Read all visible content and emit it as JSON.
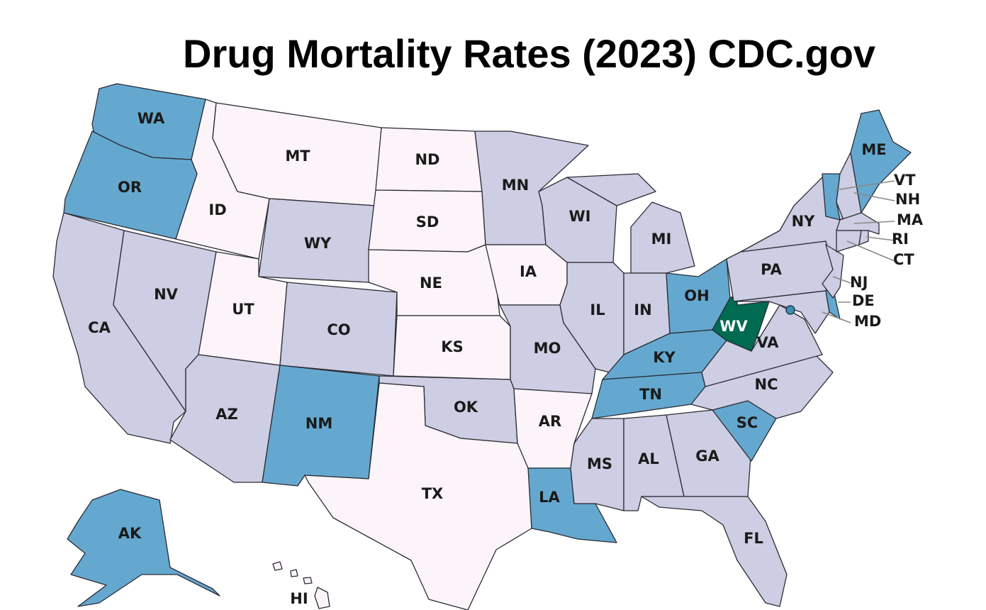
{
  "title": "Drug Mortality Rates (2023)  CDC.gov",
  "states": [
    {
      "label": "WA",
      "color": "#64a8cf"
    },
    {
      "label": "OR",
      "color": "#64a8cf"
    },
    {
      "label": "CA",
      "color": "#cdcde3"
    },
    {
      "label": "NV",
      "color": "#cdcde3"
    },
    {
      "label": "ID",
      "color": "#fcf4f9"
    },
    {
      "label": "MT",
      "color": "#fcf4f9"
    },
    {
      "label": "WY",
      "color": "#cdcde3"
    },
    {
      "label": "UT",
      "color": "#fcf4f9"
    },
    {
      "label": "CO",
      "color": "#cdcde3"
    },
    {
      "label": "AZ",
      "color": "#cdcde3"
    },
    {
      "label": "NM",
      "color": "#64a8cf"
    },
    {
      "label": "ND",
      "color": "#fcf4f9"
    },
    {
      "label": "SD",
      "color": "#fcf4f9"
    },
    {
      "label": "NE",
      "color": "#fcf4f9"
    },
    {
      "label": "KS",
      "color": "#fcf4f9"
    },
    {
      "label": "OK",
      "color": "#cdcde3"
    },
    {
      "label": "TX",
      "color": "#fcf4f9"
    },
    {
      "label": "MN",
      "color": "#cdcde3"
    },
    {
      "label": "IA",
      "color": "#fcf4f9"
    },
    {
      "label": "MO",
      "color": "#cdcde3"
    },
    {
      "label": "AR",
      "color": "#fcf4f9"
    },
    {
      "label": "LA",
      "color": "#64a8cf"
    },
    {
      "label": "WI",
      "color": "#cdcde3"
    },
    {
      "label": "IL",
      "color": "#cdcde3"
    },
    {
      "label": "MI",
      "color": "#cdcde3"
    },
    {
      "label": "IN",
      "color": "#cdcde3"
    },
    {
      "label": "OH",
      "color": "#64a8cf"
    },
    {
      "label": "KY",
      "color": "#64a8cf"
    },
    {
      "label": "TN",
      "color": "#64a8cf"
    },
    {
      "label": "MS",
      "color": "#cdcde3"
    },
    {
      "label": "AL",
      "color": "#cdcde3"
    },
    {
      "label": "GA",
      "color": "#cdcde3"
    },
    {
      "label": "FL",
      "color": "#cdcde3"
    },
    {
      "label": "SC",
      "color": "#64a8cf"
    },
    {
      "label": "NC",
      "color": "#cdcde3"
    },
    {
      "label": "VA",
      "color": "#cdcde3"
    },
    {
      "label": "WV",
      "color": "#006b50"
    },
    {
      "label": "PA",
      "color": "#cdcde3"
    },
    {
      "label": "NY",
      "color": "#cdcde3"
    },
    {
      "label": "MD",
      "color": "#cdcde3"
    },
    {
      "label": "DE",
      "color": "#64a8cf"
    },
    {
      "label": "NJ",
      "color": "#cdcde3"
    },
    {
      "label": "VT",
      "color": "#64a8cf"
    },
    {
      "label": "NH",
      "color": "#cdcde3"
    },
    {
      "label": "ME",
      "color": "#64a8cf"
    },
    {
      "label": "MA",
      "color": "#cdcde3"
    },
    {
      "label": "CT",
      "color": "#cdcde3"
    },
    {
      "label": "RI",
      "color": "#cdcde3"
    },
    {
      "label": "AK",
      "color": "#64a8cf"
    },
    {
      "label": "HI",
      "color": "#fcf4f9"
    }
  ]
}
